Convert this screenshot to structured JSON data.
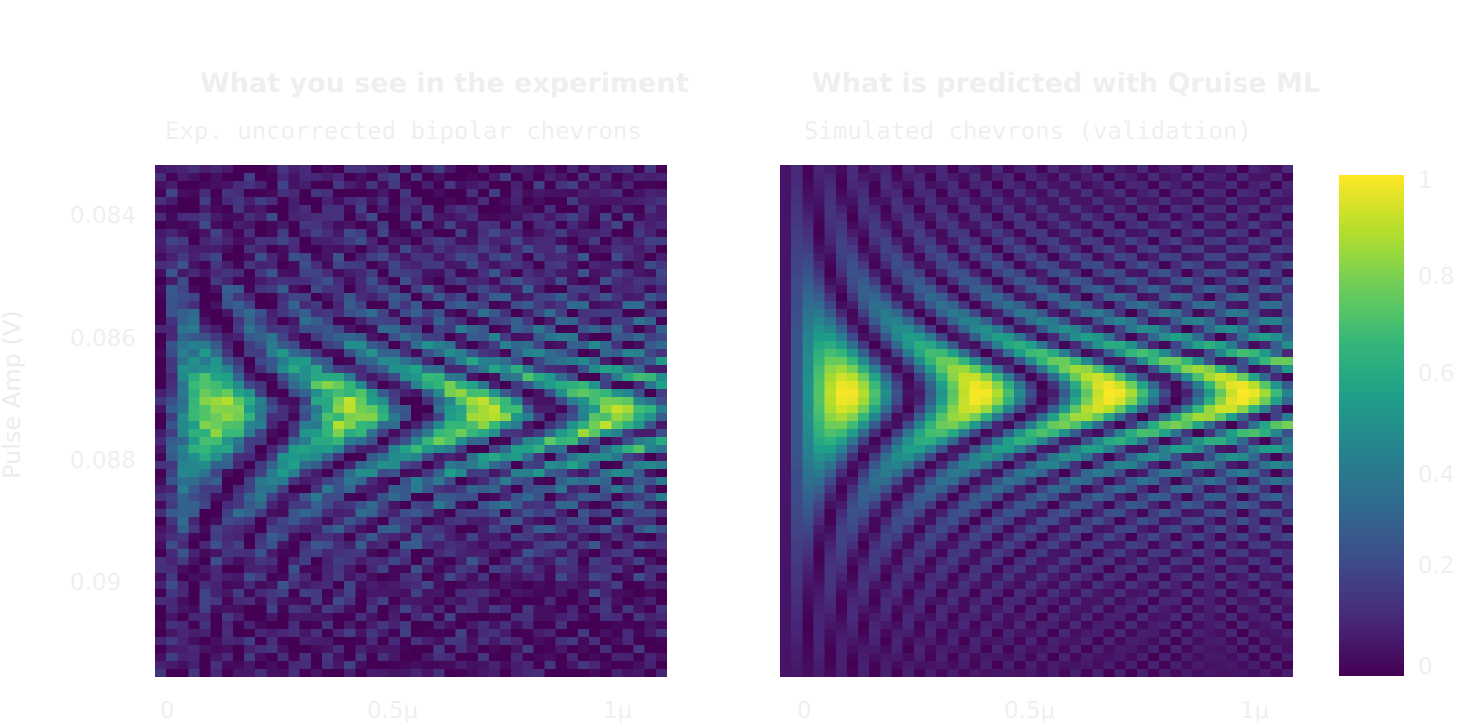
{
  "chart_data": [
    {
      "type": "heatmap",
      "title": "What you see in the experiment",
      "subtitle": "Exp. uncorrected bipolar chevrons",
      "xlabel": "",
      "ylabel": "Pulse Amp (V)",
      "xticks": [
        "0",
        "0.5μ",
        "1μ"
      ],
      "xtick_values": [
        0,
        5e-07,
        1e-06
      ],
      "yticks": [
        "0.084",
        "0.086",
        "0.088",
        "0.09"
      ],
      "ytick_values": [
        0.084,
        0.086,
        0.088,
        0.09
      ],
      "xlim": [
        0,
        1.1e-06
      ],
      "ylim": [
        0.0832,
        0.0915
      ],
      "grid_size": [
        46,
        64
      ],
      "colormap": "viridis",
      "zlim": [
        0,
        1
      ],
      "noise": true,
      "center_amp": 0.0872
    },
    {
      "type": "heatmap",
      "title": "What is predicted with Qruise ML",
      "subtitle": "Simulated chevrons (validation)",
      "xlabel": "",
      "ylabel": "",
      "xticks": [
        "0",
        "0.5μ",
        "1μ"
      ],
      "xtick_values": [
        0,
        5e-07,
        1e-06
      ],
      "xlim": [
        0,
        1.1e-06
      ],
      "ylim": [
        0.0832,
        0.0915
      ],
      "grid_size": [
        46,
        64
      ],
      "colormap": "viridis",
      "zlim": [
        0,
        1
      ],
      "noise": false,
      "center_amp": 0.0869
    }
  ],
  "colorbar": {
    "ticks": [
      "0",
      "0.2",
      "0.4",
      "0.6",
      "0.8",
      "1"
    ],
    "tick_values": [
      0,
      0.2,
      0.4,
      0.6,
      0.8,
      1
    ]
  },
  "colors": {
    "viridis_low": "#440154",
    "viridis_mid": "#21918c",
    "viridis_high": "#fde725",
    "text": "#efefef"
  }
}
